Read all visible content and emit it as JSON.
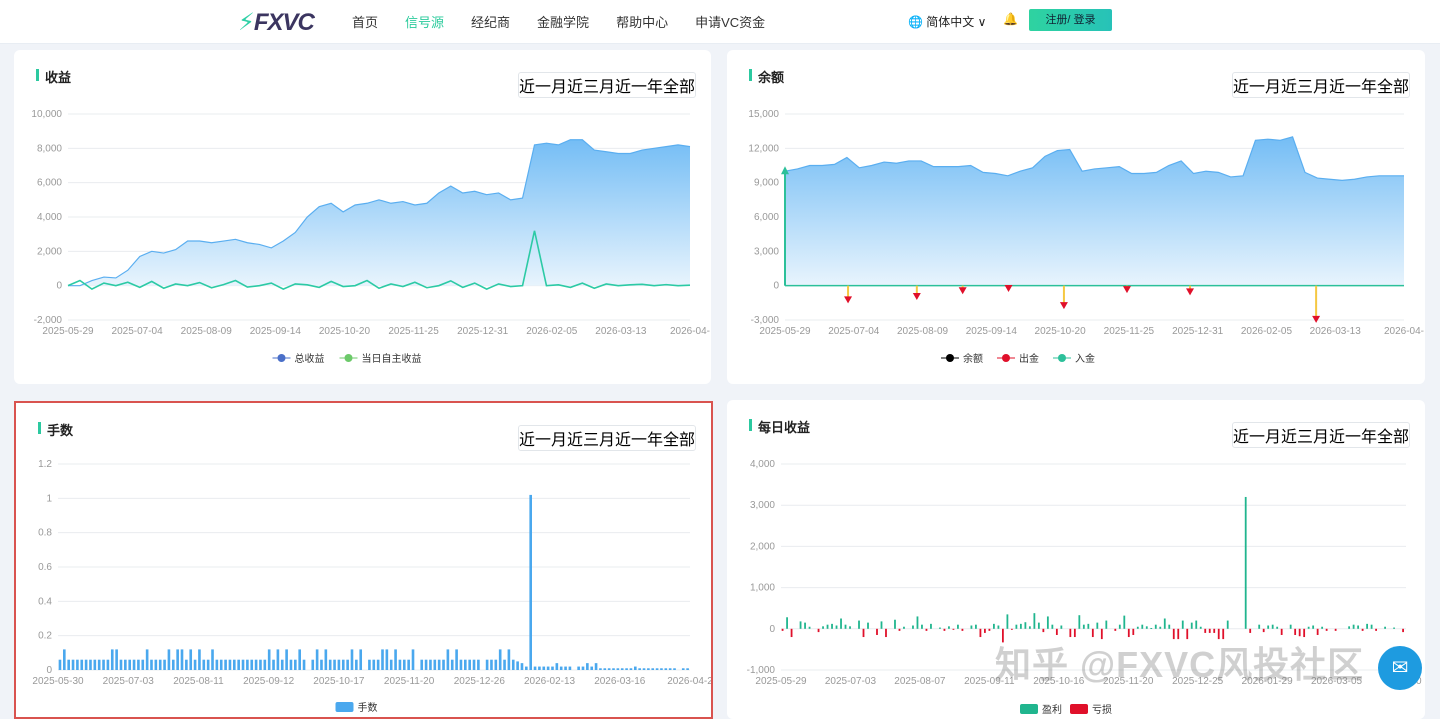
{
  "header": {
    "logo": "FXVC",
    "nav": [
      "首页",
      "信号源",
      "经纪商",
      "金融学院",
      "帮助中心",
      "申请VC资金"
    ],
    "active_nav": 1,
    "language": "简体中文",
    "login": "注册/ 登录"
  },
  "ranges": [
    "近一月",
    "近三月",
    "近一年",
    "全部"
  ],
  "watermark": "知乎 @FXVC风投社区",
  "colors": {
    "accent": "#2ccca1",
    "area": "#7ec4f6",
    "bar": "#4aa8ee",
    "profit": "#20b58e",
    "loss": "#e0102a",
    "selected_border": "#d9534f"
  },
  "chart_data": [
    {
      "id": "income",
      "title": "收益",
      "type": "area",
      "ylim": [
        -2000,
        10000
      ],
      "yticks": [
        "-2,000",
        "0",
        "2,000",
        "4,000",
        "6,000",
        "8,000",
        "10,000"
      ],
      "ytick_values": [
        -2000,
        0,
        2000,
        4000,
        6000,
        8000,
        10000
      ],
      "xlim": [
        "2025-05-29",
        "2026-04-18"
      ],
      "xticks": [
        "2025-05-29",
        "2025-07-04",
        "2025-08-09",
        "2025-09-14",
        "2025-10-20",
        "2025-11-25",
        "2025-12-31",
        "2026-02-05",
        "2026-03-13",
        "2026-04-"
      ],
      "legend": [
        "总收益",
        "当日自主收益"
      ],
      "legend_colors": [
        "#4a6fc8",
        "#6cc96a"
      ],
      "series": [
        {
          "name": "总收益",
          "values": [
            0,
            0,
            300,
            500,
            450,
            900,
            1700,
            2000,
            1900,
            2100,
            2600,
            2600,
            2500,
            2600,
            2700,
            2500,
            2400,
            2200,
            2600,
            3100,
            4000,
            4600,
            4800,
            4300,
            4700,
            4800,
            5000,
            4800,
            4900,
            4700,
            4800,
            5400,
            5800,
            5400,
            5500,
            5300,
            5400,
            5000,
            5100,
            8200,
            8300,
            8200,
            8500,
            8500,
            7900,
            7800,
            7700,
            7700,
            7900,
            8000,
            8100,
            8200,
            8100
          ]
        },
        {
          "name": "当日自主收益",
          "values": [
            0,
            300,
            -200,
            150,
            0,
            200,
            -100,
            250,
            -150,
            100,
            0,
            180,
            -120,
            60,
            300,
            -80,
            0,
            150,
            -200,
            100,
            50,
            -100,
            250,
            -50,
            0,
            300,
            -150,
            100,
            -50,
            200,
            -120,
            0,
            280,
            -100,
            150,
            -200,
            100,
            -50,
            0,
            3200,
            0,
            50,
            -100,
            150,
            -150,
            100,
            0,
            50,
            80,
            0,
            60,
            0,
            30
          ]
        }
      ]
    },
    {
      "id": "balance",
      "title": "余额",
      "type": "area",
      "ylim": [
        -3000,
        15000
      ],
      "yticks": [
        "-3,000",
        "0",
        "3,000",
        "6,000",
        "9,000",
        "12,000",
        "15,000"
      ],
      "ytick_values": [
        -3000,
        0,
        3000,
        6000,
        9000,
        12000,
        15000
      ],
      "xlim": [
        "2025-05-29",
        "2026-04-18"
      ],
      "xticks": [
        "2025-05-29",
        "2025-07-04",
        "2025-08-09",
        "2025-09-14",
        "2025-10-20",
        "2025-11-25",
        "2025-12-31",
        "2026-02-05",
        "2026-03-13",
        "2026-04-"
      ],
      "legend": [
        "余额",
        "出金",
        "入金"
      ],
      "legend_colors": [
        "#000000",
        "#e0102a",
        "#2cc09a"
      ],
      "series": [
        {
          "name": "余额",
          "values": [
            10000,
            10200,
            10500,
            10500,
            10600,
            11200,
            10300,
            10500,
            10800,
            10700,
            10900,
            10900,
            10400,
            10400,
            10400,
            10500,
            9900,
            9800,
            9600,
            10000,
            10300,
            11300,
            11800,
            11900,
            10000,
            10200,
            10300,
            10400,
            9800,
            9800,
            9900,
            10500,
            10900,
            9800,
            10000,
            9900,
            9500,
            9600,
            12700,
            12800,
            12700,
            13000,
            9900,
            9400,
            9300,
            9200,
            9300,
            9500,
            9600,
            9600,
            9600
          ]
        }
      ],
      "withdrawals": [
        {
          "date": "2025-07-01",
          "value": -1200
        },
        {
          "date": "2025-08-06",
          "value": -900
        },
        {
          "date": "2025-08-30",
          "value": -400
        },
        {
          "date": "2025-09-23",
          "value": -200
        },
        {
          "date": "2025-10-22",
          "value": -1700
        },
        {
          "date": "2025-11-24",
          "value": -300
        },
        {
          "date": "2025-12-27",
          "value": -500
        },
        {
          "date": "2026-03-03",
          "value": -2900
        }
      ],
      "deposits": [
        {
          "date": "2025-05-29",
          "value": 10000
        }
      ]
    },
    {
      "id": "lots",
      "title": "手数",
      "type": "bar",
      "ylim": [
        0,
        1.2
      ],
      "yticks": [
        "0",
        "0.2",
        "0.4",
        "0.6",
        "0.8",
        "1",
        "1.2"
      ],
      "ytick_values": [
        0,
        0.2,
        0.4,
        0.6,
        0.8,
        1,
        1.2
      ],
      "xticks": [
        "2025-05-30",
        "2025-07-03",
        "2025-08-11",
        "2025-09-12",
        "2025-10-17",
        "2025-11-20",
        "2025-12-26",
        "2026-02-13",
        "2026-03-16",
        "2026-04-2"
      ],
      "legend": [
        "手数"
      ],
      "values": [
        0.06,
        0.12,
        0.06,
        0.06,
        0.06,
        0.06,
        0.06,
        0.06,
        0.06,
        0.06,
        0.06,
        0.06,
        0.12,
        0.12,
        0.06,
        0.06,
        0.06,
        0.06,
        0.06,
        0.06,
        0.12,
        0.06,
        0.06,
        0.06,
        0.06,
        0.12,
        0.06,
        0.12,
        0.12,
        0.06,
        0.12,
        0.06,
        0.12,
        0.06,
        0.06,
        0.12,
        0.06,
        0.06,
        0.06,
        0.06,
        0.06,
        0.06,
        0.06,
        0.06,
        0.06,
        0.06,
        0.06,
        0.06,
        0.12,
        0.06,
        0.12,
        0.06,
        0.12,
        0.06,
        0.06,
        0.12,
        0.06,
        0,
        0.06,
        0.12,
        0.06,
        0.12,
        0.06,
        0.06,
        0.06,
        0.06,
        0.06,
        0.12,
        0.06,
        0.12,
        0,
        0.06,
        0.06,
        0.06,
        0.12,
        0.12,
        0.06,
        0.12,
        0.06,
        0.06,
        0.06,
        0.12,
        0,
        0.06,
        0.06,
        0.06,
        0.06,
        0.06,
        0.06,
        0.12,
        0.06,
        0.12,
        0.06,
        0.06,
        0.06,
        0.06,
        0.06,
        0,
        0.06,
        0.06,
        0.06,
        0.12,
        0.06,
        0.12,
        0.06,
        0.05,
        0.04,
        0.02,
        1.02,
        0.02,
        0.02,
        0.02,
        0.02,
        0.02,
        0.04,
        0.02,
        0.02,
        0.02,
        0,
        0.02,
        0.02,
        0.04,
        0.02,
        0.04,
        0.01,
        0.01,
        0.01,
        0.01,
        0.01,
        0.01,
        0.01,
        0.01,
        0.02,
        0.01,
        0.01,
        0.01,
        0.01,
        0.01,
        0.01,
        0.01,
        0.01,
        0.01,
        0,
        0.01,
        0.01
      ]
    },
    {
      "id": "daily",
      "title": "每日收益",
      "type": "bar",
      "ylim": [
        -1000,
        4000
      ],
      "yticks": [
        "-1,000",
        "0",
        "1,000",
        "2,000",
        "3,000",
        "4,000"
      ],
      "ytick_values": [
        -1000,
        0,
        1000,
        2000,
        3000,
        4000
      ],
      "xticks": [
        "2025-05-29",
        "2025-07-03",
        "2025-08-07",
        "2025-09-11",
        "2025-10-16",
        "2025-11-20",
        "2025-12-25",
        "2026-01-29",
        "2026-03-05",
        "2026-0"
      ],
      "legend": [
        "盈利",
        "亏损"
      ],
      "values": [
        -50,
        280,
        -200,
        0,
        180,
        150,
        50,
        0,
        -80,
        60,
        100,
        120,
        80,
        250,
        100,
        60,
        0,
        200,
        -200,
        150,
        0,
        -150,
        180,
        -200,
        0,
        220,
        -50,
        50,
        0,
        80,
        300,
        100,
        -50,
        120,
        0,
        30,
        -50,
        60,
        -20,
        100,
        -50,
        0,
        80,
        100,
        -200,
        -100,
        -50,
        120,
        80,
        -330,
        350,
        -20,
        100,
        120,
        160,
        60,
        380,
        150,
        -80,
        300,
        100,
        -150,
        80,
        0,
        -200,
        -200,
        330,
        100,
        120,
        -200,
        150,
        -250,
        200,
        0,
        -50,
        100,
        320,
        -200,
        -150,
        50,
        100,
        60,
        20,
        100,
        50,
        250,
        100,
        -250,
        -250,
        200,
        -250,
        150,
        200,
        50,
        -100,
        -100,
        -100,
        -250,
        -250,
        200,
        0,
        0,
        0,
        3200,
        -100,
        0,
        100,
        -80,
        80,
        100,
        50,
        -150,
        0,
        100,
        -150,
        -180,
        -200,
        50,
        80,
        -150,
        50,
        -50,
        0,
        -50,
        0,
        0,
        60,
        100,
        80,
        -50,
        120,
        100,
        -50,
        0,
        50,
        0,
        30,
        0,
        -80
      ]
    }
  ]
}
